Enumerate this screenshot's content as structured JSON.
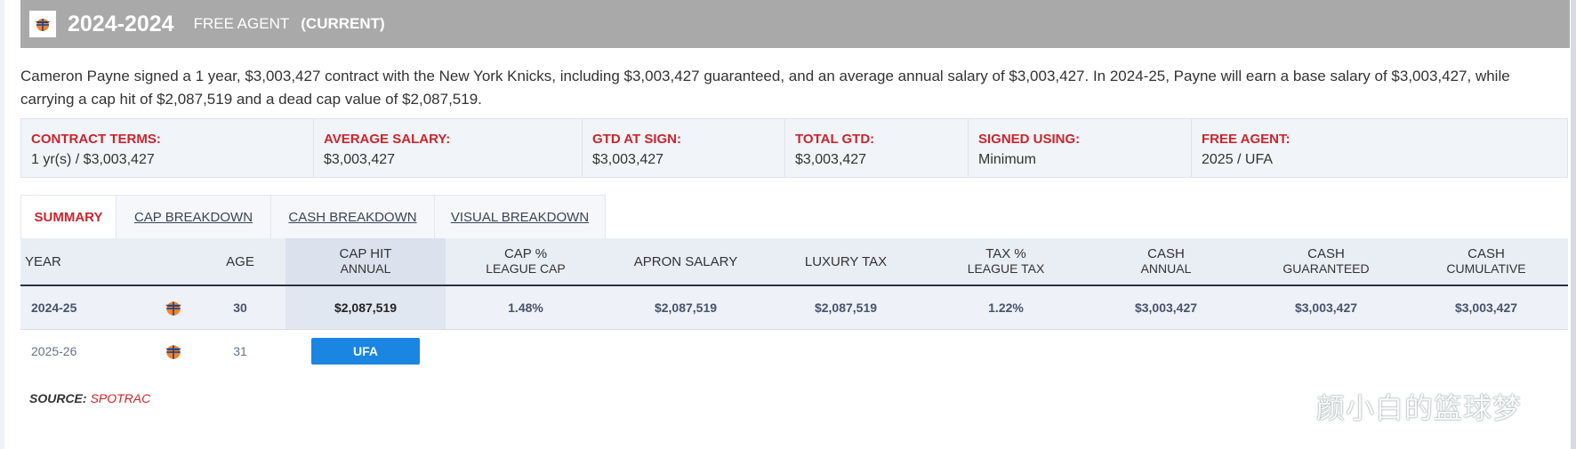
{
  "header": {
    "years": "2024-2024",
    "status": "FREE AGENT",
    "current": "(CURRENT)",
    "team_icon": "knicks-logo-icon"
  },
  "summary": "Cameron Payne signed a 1 year, $3,003,427 contract with the New York Knicks, including $3,003,427 guaranteed, and an average annual salary of $3,003,427. In 2024-25, Payne will earn a base salary of $3,003,427, while carrying a cap hit of $2,087,519 and a dead cap value of $2,087,519.",
  "terms": [
    {
      "label": "CONTRACT TERMS:",
      "value": "1 yr(s) / $3,003,427"
    },
    {
      "label": "AVERAGE SALARY:",
      "value": "$3,003,427"
    },
    {
      "label": "GTD AT SIGN:",
      "value": "$3,003,427"
    },
    {
      "label": "TOTAL GTD:",
      "value": "$3,003,427"
    },
    {
      "label": "SIGNED USING:",
      "value": "Minimum"
    },
    {
      "label": "FREE AGENT:",
      "value": "2025 / UFA"
    }
  ],
  "tabs": [
    {
      "label": "SUMMARY",
      "active": true
    },
    {
      "label": "CAP BREAKDOWN",
      "active": false
    },
    {
      "label": "CASH BREAKDOWN",
      "active": false
    },
    {
      "label": "VISUAL BREAKDOWN",
      "active": false
    }
  ],
  "table": {
    "headers": {
      "year": "YEAR",
      "age": "AGE",
      "cap_hit": [
        "CAP HIT",
        "ANNUAL"
      ],
      "cap_pct": [
        "CAP %",
        "LEAGUE CAP"
      ],
      "apron": "APRON SALARY",
      "luxury": "LUXURY TAX",
      "tax_pct": [
        "TAX %",
        "LEAGUE TAX"
      ],
      "cash_annual": [
        "CASH",
        "ANNUAL"
      ],
      "cash_guaranteed": [
        "CASH",
        "GUARANTEED"
      ],
      "cash_cumulative": [
        "CASH",
        "CUMULATIVE"
      ]
    },
    "rows": [
      {
        "year": "2024-25",
        "age": "30",
        "cap_hit": "$2,087,519",
        "cap_pct": "1.48%",
        "apron": "$2,087,519",
        "luxury": "$2,087,519",
        "tax_pct": "1.22%",
        "cash_annual": "$3,003,427",
        "cash_guaranteed": "$3,003,427",
        "cash_cumulative": "$3,003,427"
      },
      {
        "year": "2025-26",
        "age": "31",
        "status_badge": "UFA"
      }
    ]
  },
  "source": {
    "label": "SOURCE:",
    "value": "SPOTRAC"
  },
  "watermark": "颜小白的篮球梦",
  "colors": {
    "header_bg": "#a9a9a9",
    "accent_red": "#c8262c",
    "ufa_blue": "#1a86e2",
    "terms_bg": "#f1f4f9"
  }
}
